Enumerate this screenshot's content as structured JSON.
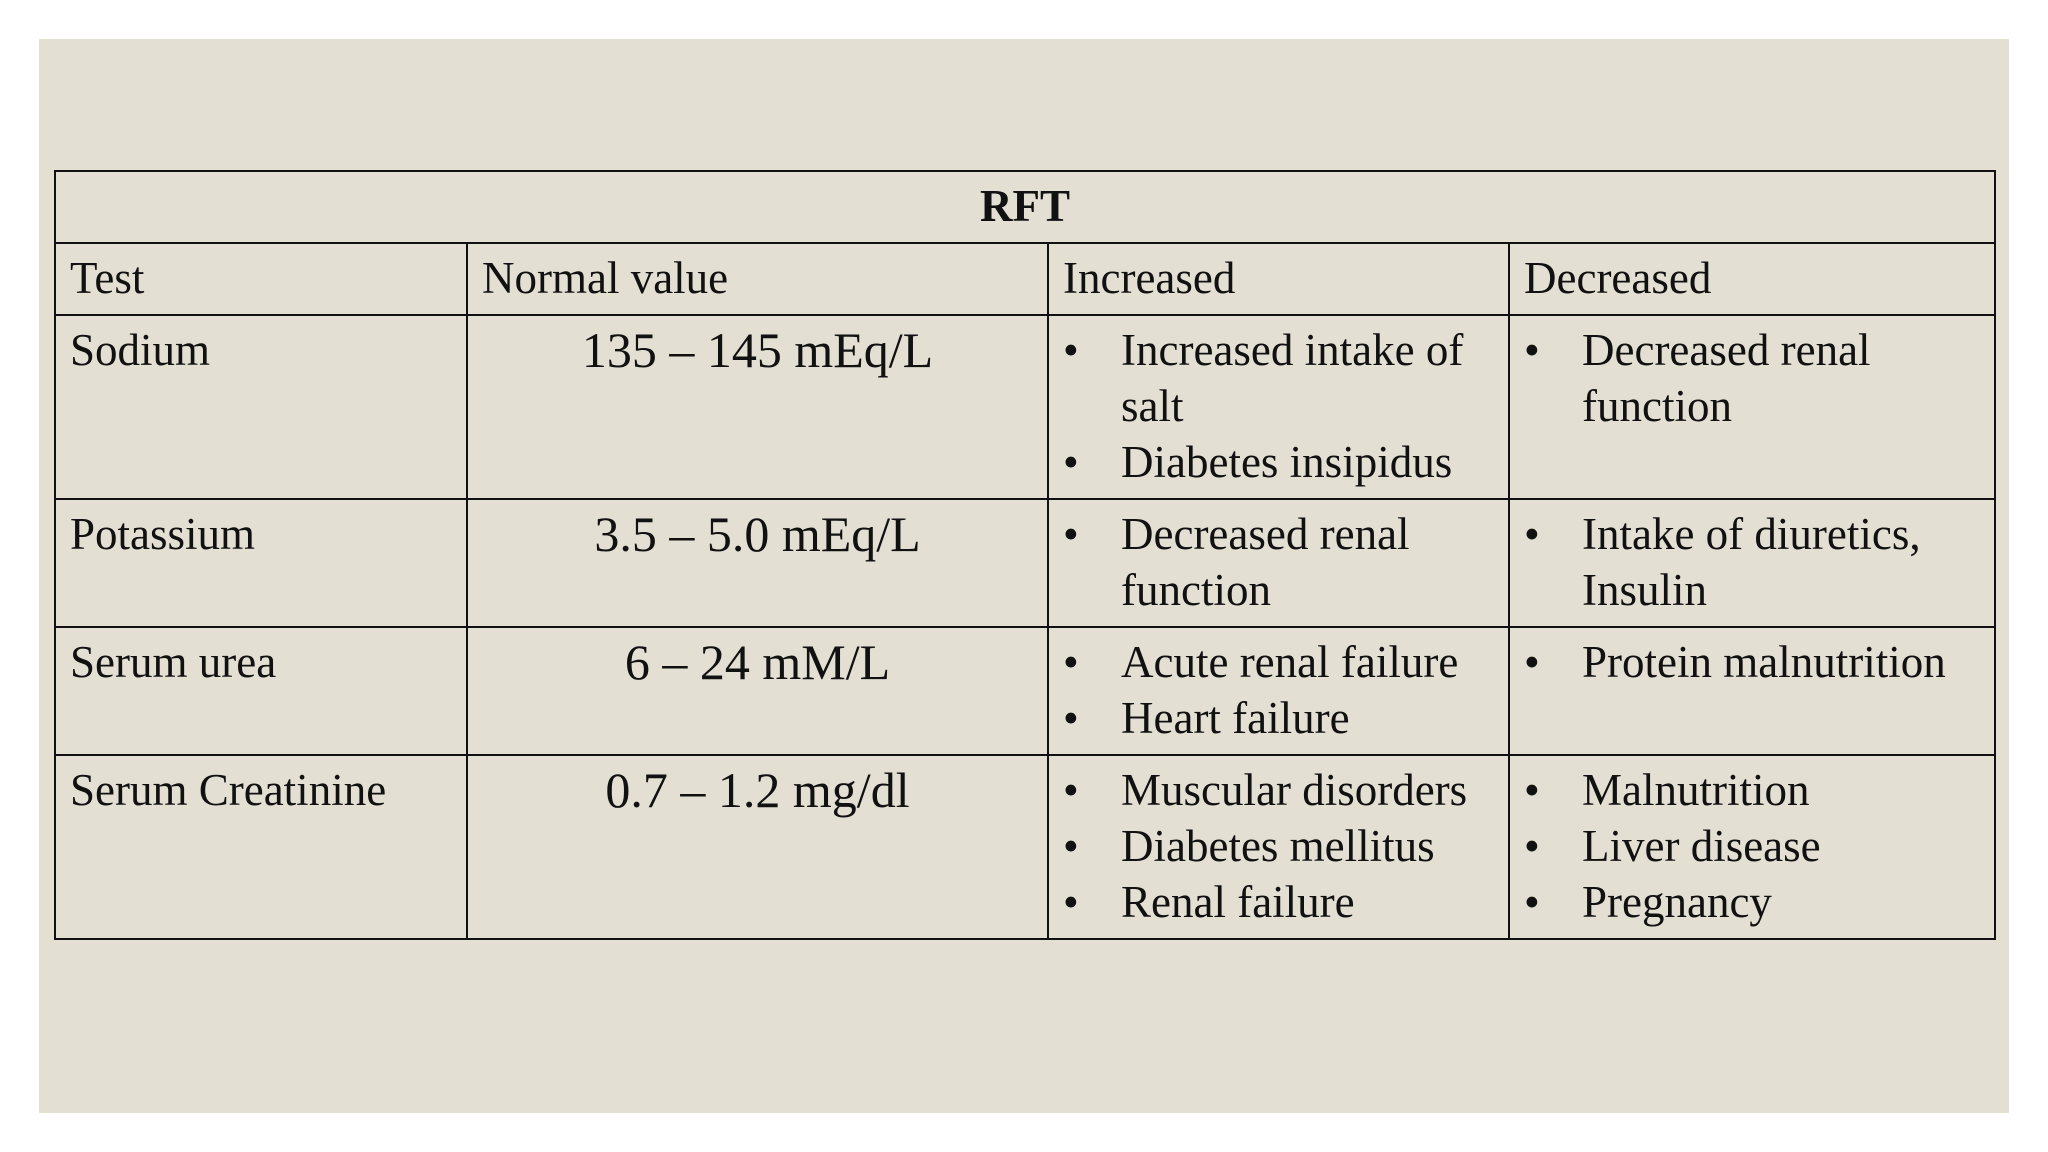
{
  "table": {
    "title": "RFT",
    "header": [
      "Test",
      "Normal value",
      "Increased",
      "Decreased"
    ],
    "rows": [
      {
        "test": "Sodium",
        "normal": "135 – 145 mEq/L",
        "increased": [
          "Increased intake of salt",
          "Diabetes insipidus"
        ],
        "decreased": [
          "Decreased renal function"
        ]
      },
      {
        "test": "Potassium",
        "normal": "3.5 – 5.0 mEq/L",
        "increased": [
          "Decreased renal function"
        ],
        "decreased": [
          "Intake of diuretics, Insulin"
        ]
      },
      {
        "test": "Serum urea",
        "normal": "6 – 24 mM/L",
        "increased": [
          "Acute renal failure",
          "Heart failure"
        ],
        "decreased": [
          "Protein malnutrition"
        ]
      },
      {
        "test": "Serum Creatinine",
        "normal": "0.7 – 1.2 mg/dl",
        "increased": [
          "Muscular disorders",
          "Diabetes mellitus",
          "Renal failure"
        ],
        "decreased": [
          "Malnutrition",
          "Liver disease",
          "Pregnancy"
        ]
      }
    ]
  }
}
